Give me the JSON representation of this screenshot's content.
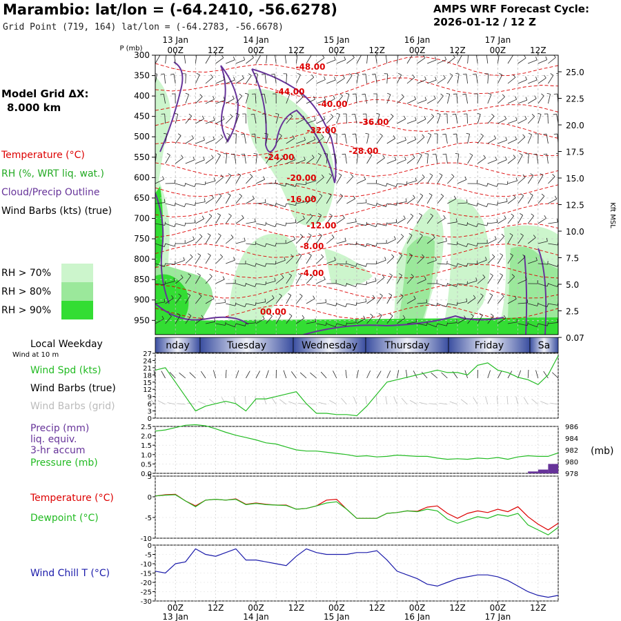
{
  "header": {
    "title": "Marambio:  lat/lon = (-64.2410, -56.6278)",
    "subtitle": "Grid Point (719, 164) lat/lon = (-64.2783, -56.6678)",
    "cycle_line1": "AMPS WRF Forecast Cycle:",
    "cycle_line2": "2026-01-12 / 12  Z"
  },
  "legend": {
    "grid_line1": "Model Grid ΔX:",
    "grid_line2": "8.000 km",
    "temperature": "Temperature (°C)",
    "rh": "RH (%, WRT liq. wat.)",
    "cloud": "Cloud/Precip Outline",
    "barbs": "Wind Barbs (kts) (true)",
    "rh70": "RH > 70%",
    "rh80": "RH > 80%",
    "rh90": "RH > 90%",
    "colors": {
      "rh70": "#ccf5cc",
      "rh80": "#9be89b",
      "rh90": "#33dd33",
      "temp": "#dd0000",
      "cloud": "#663399",
      "green": "#22bb22",
      "blue": "#1a1aaa"
    }
  },
  "panels": {
    "weekday_title": "Local Weekday",
    "wind10m": "Wind at 10 m",
    "wspd": "Wind Spd (kts)",
    "wbarbs_true": "Wind Barbs (true)",
    "wbarbs_grid": "Wind Barbs (grid)",
    "precip1": "Precip (mm)",
    "precip2": "liq. equiv.",
    "precip3": "3-hr accum",
    "pressure": "Pressure (mb)",
    "pressure_unit": "(mb)",
    "temp": "Temperature (°C)",
    "dewpoint": "Dewpoint (°C)",
    "windchill": "Wind Chill T (°C)"
  },
  "chart_data": [
    {
      "type": "heatmap",
      "name": "cross-section",
      "ylabel": "P (mb)",
      "y2label": "Kft MSL",
      "x_top_ticks": [
        "00Z",
        "12Z",
        "00Z",
        "12Z",
        "00Z",
        "12Z",
        "00Z",
        "12Z",
        "00Z",
        "12Z"
      ],
      "x_dates": [
        "13 Jan",
        "14 Jan",
        "15 Jan",
        "16 Jan",
        "17 Jan"
      ],
      "y_ticks": [
        "300",
        "350",
        "400",
        "450",
        "500",
        "550",
        "600",
        "650",
        "700",
        "750",
        "800",
        "850",
        "900",
        "950"
      ],
      "y2_ticks": [
        "25.0",
        "22.5",
        "20.0",
        "17.5",
        "15.0",
        "12.5",
        "10.0",
        "7.5",
        "5.0",
        "2.5",
        "0.07"
      ],
      "temp_labels": [
        "-48.00",
        "-44.00",
        "-40.00",
        "-36.00",
        "-32.00",
        "-28.00",
        "-24.00",
        "-20.00",
        "-16.00",
        "-12.00",
        "-8.00",
        "-4.00",
        "00.00"
      ]
    },
    {
      "type": "table",
      "name": "weekday",
      "days": [
        "nday",
        "Tuesday",
        "Wednesday",
        "Thursday",
        "Friday",
        "Sa"
      ]
    },
    {
      "type": "line",
      "name": "wind-speed",
      "y_ticks": [
        "27",
        "24",
        "21",
        "18",
        "15",
        "12",
        "9",
        "6",
        "3",
        "0"
      ],
      "ylim": [
        0,
        27
      ],
      "hours": [
        0,
        3,
        6,
        9,
        12,
        15,
        18,
        21,
        24,
        27,
        30,
        33,
        36,
        39,
        42,
        45,
        48,
        51,
        54,
        57,
        60,
        63,
        66,
        69,
        72,
        75,
        78,
        81,
        84,
        87,
        90,
        93,
        96,
        99,
        102,
        105,
        108,
        111,
        114,
        117,
        120
      ],
      "values": [
        20,
        21,
        15,
        9,
        3,
        5,
        6,
        7,
        6,
        3,
        8,
        8,
        9,
        10,
        11,
        6,
        2,
        2,
        1.5,
        1.5,
        1,
        5,
        10,
        15,
        16,
        17,
        18,
        19,
        20,
        19,
        19,
        18,
        22,
        23,
        20,
        19,
        17,
        16,
        14,
        18,
        26
      ]
    },
    {
      "type": "line",
      "name": "pressure-precip",
      "y_ticks": [
        "2.5",
        "2.0",
        "1.5",
        "1.0",
        "0.5",
        "0.0"
      ],
      "y2_ticks": [
        "986",
        "984",
        "982",
        "980",
        "978"
      ],
      "ylim": [
        0,
        2.5
      ],
      "y2lim": [
        978,
        986
      ],
      "hours": [
        0,
        3,
        6,
        9,
        12,
        15,
        18,
        21,
        24,
        27,
        30,
        33,
        36,
        39,
        42,
        45,
        48,
        51,
        54,
        57,
        60,
        63,
        66,
        69,
        72,
        75,
        78,
        81,
        84,
        87,
        90,
        93,
        96,
        99,
        102,
        105,
        108,
        111,
        114,
        117,
        120
      ],
      "pressure": [
        985.2,
        985.4,
        985.8,
        986.2,
        986.3,
        986.1,
        985.6,
        985.0,
        984.5,
        984.1,
        983.7,
        983.2,
        983.0,
        982.5,
        982.0,
        981.8,
        981.8,
        981.6,
        981.4,
        981.2,
        980.9,
        981.0,
        980.8,
        980.9,
        981.1,
        981.0,
        980.9,
        980.9,
        980.6,
        980.4,
        980.5,
        980.4,
        980.6,
        980.5,
        980.7,
        980.4,
        980.8,
        981.0,
        980.9,
        980.9,
        981.5
      ],
      "precip_hours": [
        114,
        117,
        120
      ],
      "precip": [
        0.1,
        0.2,
        0.5
      ]
    },
    {
      "type": "line",
      "name": "temperature-dewpoint",
      "y_ticks": [
        "5",
        "0",
        "-5",
        "-10"
      ],
      "ylim": [
        -10,
        5
      ],
      "hours": [
        0,
        3,
        6,
        9,
        12,
        15,
        18,
        21,
        24,
        27,
        30,
        33,
        36,
        39,
        42,
        45,
        48,
        51,
        54,
        57,
        60,
        63,
        66,
        69,
        72,
        75,
        78,
        81,
        84,
        87,
        90,
        93,
        96,
        99,
        102,
        105,
        108,
        111,
        114,
        117,
        120
      ],
      "series": [
        {
          "name": "Temperature (°C)",
          "values": [
            0.2,
            0.5,
            0.6,
            -1.0,
            -2.2,
            -0.8,
            -0.6,
            -0.8,
            -0.5,
            -1.8,
            -1.5,
            -1.8,
            -2.0,
            -2.0,
            -3.0,
            -2.8,
            -2.2,
            -0.8,
            -0.6,
            -3.0,
            -5.2,
            -5.2,
            -5.2,
            -4.0,
            -3.8,
            -3.4,
            -3.5,
            -2.5,
            -2.2,
            -4.0,
            -5.2,
            -4.0,
            -3.4,
            -3.8,
            -3.0,
            -3.6,
            -2.4,
            -4.8,
            -6.6,
            -8.0,
            -6.4
          ]
        },
        {
          "name": "Dewpoint (°C)",
          "values": [
            0.2,
            0.4,
            0.5,
            -1.0,
            -2.4,
            -0.8,
            -0.6,
            -0.8,
            -0.6,
            -1.9,
            -1.6,
            -1.9,
            -2.0,
            -2.1,
            -3.0,
            -2.8,
            -2.2,
            -1.5,
            -1.2,
            -3.0,
            -5.2,
            -5.2,
            -5.2,
            -4.0,
            -3.8,
            -3.4,
            -3.6,
            -3.0,
            -3.4,
            -5.4,
            -6.4,
            -5.6,
            -4.8,
            -5.2,
            -4.3,
            -4.7,
            -4.0,
            -6.8,
            -8.0,
            -9.2,
            -7.4
          ]
        }
      ]
    },
    {
      "type": "line",
      "name": "wind-chill",
      "y_ticks": [
        "0",
        "-5",
        "-10",
        "-15",
        "-20",
        "-25",
        "-30"
      ],
      "ylim": [
        -30,
        0
      ],
      "x_bottom_ticks": [
        "00Z",
        "12Z",
        "00Z",
        "12Z",
        "00Z",
        "12Z",
        "00Z",
        "12Z",
        "00Z",
        "12Z"
      ],
      "x_dates": [
        "13 Jan",
        "14 Jan",
        "15 Jan",
        "16 Jan",
        "17 Jan"
      ],
      "hours": [
        0,
        3,
        6,
        9,
        12,
        15,
        18,
        21,
        24,
        27,
        30,
        33,
        36,
        39,
        42,
        45,
        48,
        51,
        54,
        57,
        60,
        63,
        66,
        69,
        72,
        75,
        78,
        81,
        84,
        87,
        90,
        93,
        96,
        99,
        102,
        105,
        108,
        111,
        114,
        117,
        120
      ],
      "values": [
        -14,
        -15,
        -10,
        -9,
        -2,
        -5,
        -6,
        -4,
        -2,
        -8,
        -8,
        -9,
        -10,
        -11,
        -6,
        -2,
        -4,
        -5,
        -5,
        -5,
        -4,
        -4,
        -3,
        -8,
        -14,
        -16,
        -18,
        -21,
        -22,
        -20,
        -18,
        -17,
        -16,
        -16,
        -17,
        -19,
        -22,
        -25,
        -27,
        -28,
        -27
      ]
    }
  ]
}
